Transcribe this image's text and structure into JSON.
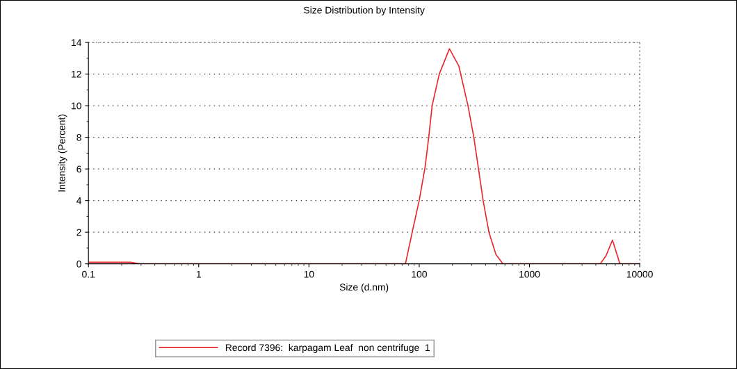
{
  "chart_data": {
    "type": "line",
    "title": "Size Distribution by Intensity",
    "xlabel": "Size (d.nm)",
    "ylabel": "Intensity (Percent)",
    "log": "x",
    "xlim": [
      0.1,
      10000
    ],
    "xticks": [
      0.1,
      1,
      10,
      100,
      1000,
      10000
    ],
    "ylim": [
      0,
      14
    ],
    "yticks": [
      0,
      2,
      4,
      6,
      8,
      10,
      12,
      14
    ],
    "grid": "y",
    "legend": "bottom",
    "marker": "none",
    "line_style": "solid",
    "series": [
      {
        "name": "Record 7396:  karpagam Leaf  non centrifuge  1",
        "color": "#e8282e",
        "x": [
          0.1,
          0.24,
          0.29,
          1,
          10,
          75,
          87,
          100,
          113,
          122,
          131,
          152,
          188,
          229,
          277,
          313,
          345,
          380,
          429,
          496,
          574,
          1000,
          4375,
          4940,
          5660,
          6620,
          10000
        ],
        "values": [
          0.1,
          0.1,
          0,
          0,
          0,
          0,
          2.1,
          4.0,
          6.1,
          8.0,
          10,
          12,
          13.6,
          12.5,
          10,
          8,
          6,
          4,
          2,
          0.6,
          0,
          0,
          0,
          0.5,
          1.5,
          0,
          0
        ]
      }
    ]
  }
}
